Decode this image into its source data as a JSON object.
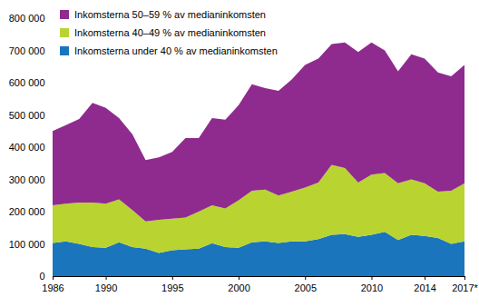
{
  "chart_data": {
    "type": "area",
    "stacked": true,
    "grid": false,
    "legend": "top-left",
    "x": [
      1986,
      1987,
      1988,
      1989,
      1990,
      1991,
      1992,
      1993,
      1994,
      1995,
      1996,
      1997,
      1998,
      1999,
      2000,
      2001,
      2002,
      2003,
      2004,
      2005,
      2006,
      2007,
      2008,
      2009,
      2010,
      2011,
      2012,
      2013,
      2014,
      2015,
      2016,
      2017
    ],
    "xlim": [
      1986,
      2017
    ],
    "xticks": [
      1986,
      1990,
      1995,
      2000,
      2005,
      2010,
      2014,
      {
        "value": 2017,
        "label": "2017*"
      }
    ],
    "ylim": [
      0,
      800000
    ],
    "yticks": [
      0,
      {
        "value": 100000,
        "label": "100 000"
      },
      {
        "value": 200000,
        "label": "200 000"
      },
      {
        "value": 300000,
        "label": "300 000"
      },
      {
        "value": 400000,
        "label": "400 000"
      },
      {
        "value": 500000,
        "label": "500 000"
      },
      {
        "value": 600000,
        "label": "600 000"
      },
      {
        "value": 700000,
        "label": "700 000"
      },
      {
        "value": 800000,
        "label": "800 000"
      }
    ],
    "series": [
      {
        "name": "Inkomsterna under 40 % av medianinkomsten",
        "color": "#1b75bc",
        "values": [
          103000,
          108000,
          100000,
          90000,
          88000,
          105000,
          90000,
          85000,
          72000,
          80000,
          83000,
          85000,
          102000,
          90000,
          88000,
          105000,
          108000,
          103000,
          108000,
          108000,
          115000,
          128000,
          130000,
          122000,
          128000,
          137000,
          112000,
          128000,
          125000,
          118000,
          100000,
          108000
        ]
      },
      {
        "name": "Inkomsterna 40–49 % av medianinkomsten",
        "color": "#b9d331",
        "values": [
          117000,
          117000,
          128000,
          138000,
          137000,
          133000,
          115000,
          85000,
          103000,
          98000,
          99000,
          115000,
          118000,
          120000,
          147000,
          160000,
          160000,
          147000,
          154000,
          167000,
          175000,
          217000,
          205000,
          168000,
          187000,
          183000,
          176000,
          172000,
          163000,
          144000,
          165000,
          180000
        ]
      },
      {
        "name": "Inkomsterna 50–59 % av medianinkomsten",
        "color": "#8f2b8e",
        "values": [
          230000,
          243000,
          259000,
          309000,
          297000,
          252000,
          235000,
          190000,
          193000,
          207000,
          246000,
          228000,
          270000,
          275000,
          295000,
          330000,
          315000,
          325000,
          348000,
          380000,
          385000,
          375000,
          390000,
          405000,
          410000,
          380000,
          347000,
          388000,
          387000,
          370000,
          355000,
          367000
        ]
      }
    ]
  }
}
